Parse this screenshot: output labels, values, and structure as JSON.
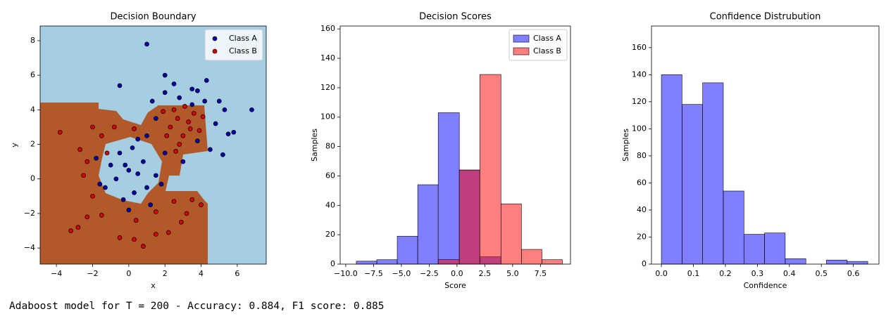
{
  "chart_data": [
    {
      "type": "scatter",
      "title": "Decision Boundary",
      "x_label": "x",
      "y_label": "y",
      "xlim": [
        -4.9,
        7.6
      ],
      "ylim": [
        -4.93,
        8.85
      ],
      "xticks": [
        {
          "value": -4,
          "label": "−4"
        },
        {
          "value": -2,
          "label": "−2"
        },
        0,
        2,
        4,
        6
      ],
      "yticks": [
        {
          "value": -4,
          "label": "−4"
        },
        {
          "value": -2,
          "label": "−2"
        },
        0,
        2,
        4,
        6,
        8
      ],
      "legend": "upper right",
      "series": [
        {
          "name": "Class A",
          "color": "#0000aa",
          "x": [
            1,
            -0.5,
            2,
            4.3,
            6.8,
            5.3,
            5.5,
            5.8,
            4.5,
            5.2,
            3,
            2.5,
            3.5,
            1.3,
            1.5,
            4.8,
            5,
            2,
            3.8,
            1,
            0.2,
            -0.5,
            0,
            0.5,
            -0.7,
            -1,
            -1.3,
            0.3,
            1,
            1.5,
            0.8,
            -0.3,
            0,
            1.2,
            -1.8,
            -1.6,
            2,
            1.8,
            0.5,
            -0.2,
            3.5,
            4.2,
            2.8,
            3.8
          ],
          "y": [
            7.8,
            5.4,
            6,
            5.7,
            4,
            4,
            2.6,
            2.7,
            1.7,
            1.4,
            1,
            5.5,
            5.2,
            4.5,
            3.5,
            3.2,
            4.5,
            5,
            5.1,
            2.5,
            1.8,
            1.5,
            0.5,
            0.3,
            0,
            0.8,
            -0.5,
            -0.8,
            -0.5,
            0.2,
            1,
            -1.2,
            -1.8,
            -1.5,
            1.2,
            -0.3,
            1.5,
            -0.3,
            2.3,
            0.8,
            4.3,
            4.5,
            4.7,
            2.2
          ]
        },
        {
          "name": "Class B",
          "color": "#dd0000",
          "x": [
            -3.8,
            -2.7,
            -2.3,
            -1.5,
            -2,
            -3.2,
            -2.8,
            -2.3,
            -2,
            -1.5,
            -0.5,
            0.3,
            0.8,
            1.5,
            2.2,
            2.9,
            3.2,
            2.5,
            3.5,
            4,
            1.5,
            0.4,
            -1.2,
            -0.8,
            0.3,
            2.3,
            2.7,
            3,
            3.3,
            2.5,
            3.6,
            2.8,
            3.9,
            2.1,
            3.1,
            3.4,
            2.6,
            4.1,
            1.9,
            -2.5
          ],
          "y": [
            2.7,
            1.7,
            1,
            2.5,
            3,
            -3,
            -2.8,
            -2.2,
            -1,
            -2.1,
            -3.4,
            -3.5,
            -3.9,
            -3.2,
            -3.1,
            -2.5,
            -2,
            -1.3,
            -1.2,
            -1.5,
            -1.9,
            -2.4,
            1.5,
            3,
            2.9,
            3,
            3.5,
            2.5,
            3.3,
            4,
            3.8,
            2,
            2.8,
            2.5,
            4.2,
            2.9,
            1.6,
            3.6,
            3.9,
            0.2
          ]
        }
      ]
    },
    {
      "type": "hist",
      "title": "Decision Scores",
      "x_label": "Score",
      "y_label": "Samples",
      "xlim": [
        -10.5,
        10.2
      ],
      "ylim": [
        0,
        162
      ],
      "xticks": [
        {
          "value": -10,
          "label": "−10.0"
        },
        {
          "value": -7.5,
          "label": "−7.5"
        },
        {
          "value": -5,
          "label": "−5.0"
        },
        {
          "value": -2.5,
          "label": "−2.5"
        },
        {
          "value": 0,
          "label": "0.0"
        },
        2.5,
        {
          "value": 5,
          "label": "5.0"
        },
        7.5
      ],
      "yticks": [
        0,
        20,
        40,
        60,
        80,
        100,
        120,
        140,
        160
      ],
      "legend": "upper right",
      "alpha": 0.5,
      "series": [
        {
          "name": "Class A",
          "color": "#0000ff",
          "bins": [
            -9.05,
            -7.21,
            -5.37,
            -3.53,
            -1.69,
            0.21,
            2.05,
            3.95
          ],
          "values": [
            2,
            3,
            19,
            54,
            103,
            64,
            5
          ]
        },
        {
          "name": "Class B",
          "color": "#ff0000",
          "bins": [
            -1.69,
            0.21,
            2.05,
            3.95,
            5.79,
            7.63,
            9.47
          ],
          "values": [
            3,
            64,
            129,
            41,
            10,
            3
          ]
        }
      ]
    },
    {
      "type": "hist",
      "title": "Confidence Distrubution",
      "x_label": "Confidence",
      "y_label": "Samples",
      "xlim": [
        -0.031,
        0.68
      ],
      "ylim": [
        0,
        176
      ],
      "xticks": [
        {
          "value": 0,
          "label": "0.0"
        },
        0.1,
        0.2,
        0.3,
        0.4,
        0.5,
        0.6
      ],
      "yticks": [
        0,
        20,
        40,
        60,
        80,
        100,
        120,
        140,
        160
      ],
      "alpha": 0.5,
      "series": [
        {
          "color": "#0000ff",
          "bins": [
            0,
            0.0645,
            0.129,
            0.1935,
            0.258,
            0.3225,
            0.387,
            0.4515,
            0.516,
            0.5805,
            0.645
          ],
          "values": [
            140,
            118,
            134,
            54,
            22,
            23,
            4,
            0,
            3,
            2
          ]
        }
      ]
    }
  ],
  "output": "Adaboost model for T = 200 - Accuracy: 0.884, F1 score: 0.885"
}
